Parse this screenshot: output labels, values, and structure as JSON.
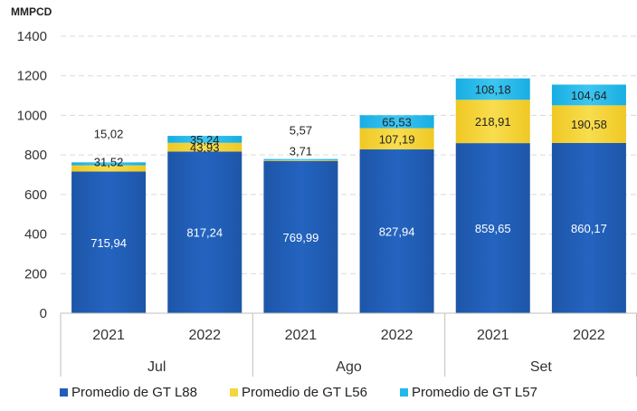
{
  "chart_data": {
    "type": "bar",
    "stacked": true,
    "ylabel": "MMPCD",
    "ylim": [
      0,
      1400
    ],
    "yticks": [
      0,
      200,
      400,
      600,
      800,
      1000,
      1200,
      1400
    ],
    "grid": true,
    "legend_position": "bottom",
    "groups": [
      {
        "label": "Jul",
        "categories": [
          "2021",
          "2022"
        ]
      },
      {
        "label": "Ago",
        "categories": [
          "2021",
          "2022"
        ]
      },
      {
        "label": "Set",
        "categories": [
          "2021",
          "2022"
        ]
      }
    ],
    "series": [
      {
        "name": "Promedio de GT L88",
        "color": "#1F5FB8",
        "values": [
          715.94,
          817.24,
          769.99,
          827.94,
          859.65,
          860.17
        ],
        "labels": [
          "715,94",
          "817,24",
          "769,99",
          "827,94",
          "859,65",
          "860,17"
        ]
      },
      {
        "name": "Promedio de GT L56",
        "color": "#F5D63C",
        "values": [
          31.52,
          43.93,
          3.71,
          107.19,
          218.91,
          190.58
        ],
        "labels": [
          "31,52",
          "43,93",
          "3,71",
          "107,19",
          "218,91",
          "190,58"
        ]
      },
      {
        "name": "Promedio de GT L57",
        "color": "#22B8EA",
        "values": [
          15.02,
          35.24,
          5.57,
          65.53,
          108.18,
          104.64
        ],
        "labels": [
          "15,02",
          "35,24",
          "5,57",
          "65,53",
          "108,18",
          "104,64"
        ]
      }
    ]
  }
}
